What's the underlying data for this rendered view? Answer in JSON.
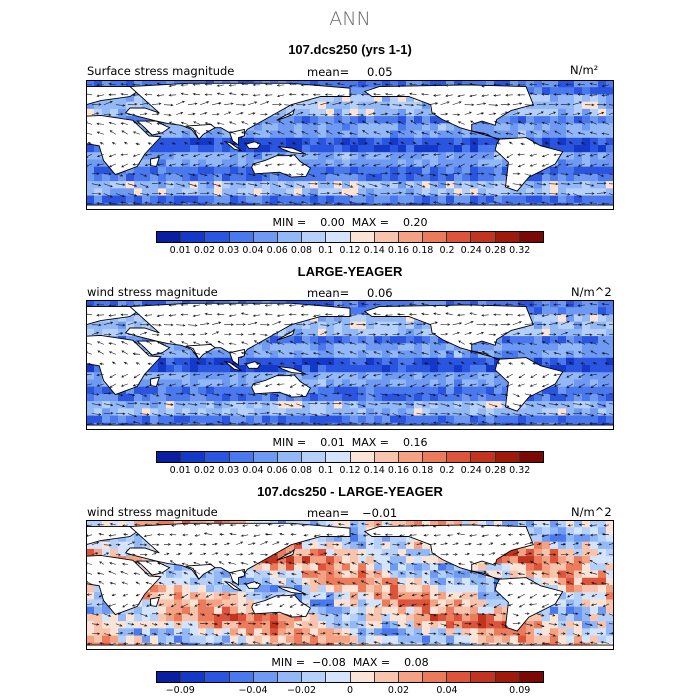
{
  "figure": {
    "title": "ANN",
    "colors": {
      "land": "#ffffff",
      "coast": "#000000",
      "vector": "#111111"
    }
  },
  "panels": [
    {
      "title": "107.dcs250 (yrs 1-1)",
      "field_label": "Surface stress magnitude",
      "mean_label": "mean=",
      "mean_value": "0.05",
      "units": "N/m²",
      "min_label": "MIN =",
      "min_value": "0.00",
      "max_label": "MAX =",
      "max_value": "0.20",
      "colorbar": {
        "colors": [
          "#0a1fa0",
          "#1438c8",
          "#2a55e0",
          "#4a78ee",
          "#6e9af4",
          "#93b8f8",
          "#b5d0fb",
          "#d4e4fc",
          "#fbe3d6",
          "#f9c4ae",
          "#f4a184",
          "#ec7b5c",
          "#dd543a",
          "#c23420",
          "#a01a0c",
          "#7a0804"
        ],
        "labels": [
          "0.01",
          "0.02",
          "0.03",
          "0.04",
          "0.06",
          "0.08",
          "0.1",
          "0.12",
          "0.14",
          "0.16",
          "0.18",
          "0.2",
          "0.24",
          "0.28",
          "0.32"
        ]
      }
    },
    {
      "title": "LARGE-YEAGER",
      "field_label": "wind stress magnitude",
      "mean_label": "mean=",
      "mean_value": "0.06",
      "units": "N/m^2",
      "min_label": "MIN =",
      "min_value": "0.01",
      "max_label": "MAX =",
      "max_value": "0.16",
      "colorbar": {
        "colors": [
          "#0a1fa0",
          "#1438c8",
          "#2a55e0",
          "#4a78ee",
          "#6e9af4",
          "#93b8f8",
          "#b5d0fb",
          "#d4e4fc",
          "#fbe3d6",
          "#f9c4ae",
          "#f4a184",
          "#ec7b5c",
          "#dd543a",
          "#c23420",
          "#a01a0c",
          "#7a0804"
        ],
        "labels": [
          "0.01",
          "0.02",
          "0.03",
          "0.04",
          "0.06",
          "0.08",
          "0.1",
          "0.12",
          "0.14",
          "0.16",
          "0.18",
          "0.2",
          "0.24",
          "0.28",
          "0.32"
        ]
      }
    },
    {
      "title": "107.dcs250 - LARGE-YEAGER",
      "field_label": "wind stress magnitude",
      "mean_label": "mean=",
      "mean_value": "−0.01",
      "units": "N/m^2",
      "min_label": "MIN =",
      "min_value": "−0.08",
      "max_label": "MAX =",
      "max_value": "0.08",
      "colorbar": {
        "colors": [
          "#0a1fa0",
          "#1438c8",
          "#2a55e0",
          "#4a78ee",
          "#6e9af4",
          "#93b8f8",
          "#b5d0fb",
          "#d4e4fc",
          "#fbe3d6",
          "#f9c4ae",
          "#f4a184",
          "#ec7b5c",
          "#dd543a",
          "#c23420",
          "#a01a0c",
          "#7a0804"
        ],
        "labels": [
          "−0.09",
          "−0.04",
          "−0.02",
          "0",
          "0.02",
          "0.04",
          "0.09"
        ]
      }
    }
  ]
}
